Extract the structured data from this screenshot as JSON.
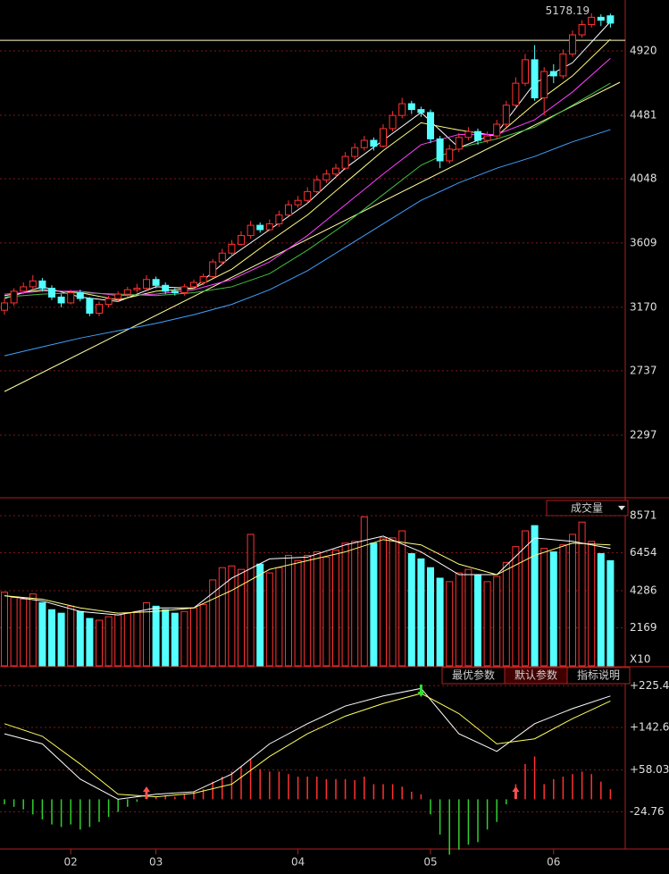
{
  "chart_data": [
    {
      "type": "candlestick",
      "peak_label": 5178.19,
      "peak_index": 62,
      "ref_line": 4993,
      "ylim": [
        1882,
        5268
      ],
      "yticks": [
        4920,
        4481,
        4048,
        3609,
        3170,
        2737,
        2297
      ],
      "x_labels": [
        {
          "index": 7,
          "label": "02"
        },
        {
          "index": 16,
          "label": "03"
        },
        {
          "index": 31,
          "label": "04"
        },
        {
          "index": 45,
          "label": "05"
        },
        {
          "index": 58,
          "label": "06"
        }
      ],
      "up_color": "#ff3232",
      "down_color": "#54ffff",
      "candles": [
        [
          3150,
          3230,
          3120,
          3200
        ],
        [
          3200,
          3300,
          3180,
          3280
        ],
        [
          3280,
          3340,
          3260,
          3310
        ],
        [
          3310,
          3390,
          3290,
          3350
        ],
        [
          3350,
          3370,
          3280,
          3300
        ],
        [
          3300,
          3320,
          3220,
          3240
        ],
        [
          3240,
          3260,
          3170,
          3200
        ],
        [
          3200,
          3290,
          3190,
          3270
        ],
        [
          3270,
          3290,
          3210,
          3230
        ],
        [
          3230,
          3240,
          3110,
          3130
        ],
        [
          3130,
          3210,
          3110,
          3190
        ],
        [
          3190,
          3250,
          3170,
          3230
        ],
        [
          3230,
          3280,
          3210,
          3260
        ],
        [
          3260,
          3310,
          3240,
          3290
        ],
        [
          3290,
          3330,
          3270,
          3300
        ],
        [
          3300,
          3390,
          3290,
          3360
        ],
        [
          3360,
          3380,
          3300,
          3320
        ],
        [
          3320,
          3340,
          3260,
          3280
        ],
        [
          3280,
          3300,
          3250,
          3270
        ],
        [
          3270,
          3330,
          3250,
          3310
        ],
        [
          3310,
          3360,
          3290,
          3340
        ],
        [
          3340,
          3400,
          3320,
          3380
        ],
        [
          3380,
          3500,
          3370,
          3480
        ],
        [
          3480,
          3570,
          3460,
          3540
        ],
        [
          3540,
          3630,
          3520,
          3600
        ],
        [
          3600,
          3690,
          3590,
          3660
        ],
        [
          3660,
          3760,
          3640,
          3730
        ],
        [
          3730,
          3750,
          3680,
          3700
        ],
        [
          3700,
          3770,
          3690,
          3740
        ],
        [
          3740,
          3830,
          3720,
          3800
        ],
        [
          3800,
          3900,
          3790,
          3870
        ],
        [
          3870,
          3930,
          3850,
          3900
        ],
        [
          3900,
          3990,
          3880,
          3960
        ],
        [
          3960,
          4070,
          3950,
          4040
        ],
        [
          4040,
          4110,
          4020,
          4080
        ],
        [
          4080,
          4150,
          4060,
          4120
        ],
        [
          4120,
          4230,
          4110,
          4200
        ],
        [
          4200,
          4290,
          4180,
          4260
        ],
        [
          4260,
          4340,
          4240,
          4310
        ],
        [
          4310,
          4330,
          4240,
          4270
        ],
        [
          4270,
          4420,
          4260,
          4390
        ],
        [
          4390,
          4510,
          4370,
          4480
        ],
        [
          4480,
          4600,
          4460,
          4560
        ],
        [
          4560,
          4580,
          4490,
          4520
        ],
        [
          4520,
          4540,
          4470,
          4500
        ],
        [
          4500,
          4520,
          4290,
          4320
        ],
        [
          4320,
          4340,
          4120,
          4170
        ],
        [
          4170,
          4280,
          4150,
          4250
        ],
        [
          4250,
          4360,
          4230,
          4330
        ],
        [
          4330,
          4400,
          4310,
          4370
        ],
        [
          4370,
          4390,
          4280,
          4310
        ],
        [
          4310,
          4370,
          4290,
          4340
        ],
        [
          4340,
          4450,
          4320,
          4420
        ],
        [
          4420,
          4580,
          4400,
          4550
        ],
        [
          4550,
          4740,
          4530,
          4700
        ],
        [
          4700,
          4900,
          4680,
          4860
        ],
        [
          4860,
          4960,
          4580,
          4600
        ],
        [
          4600,
          4810,
          4480,
          4780
        ],
        [
          4780,
          4830,
          4700,
          4750
        ],
        [
          4750,
          4930,
          4730,
          4900
        ],
        [
          4900,
          5060,
          4880,
          5030
        ],
        [
          5030,
          5130,
          5010,
          5100
        ],
        [
          5100,
          5178.19,
          5080,
          5150
        ],
        [
          5150,
          5170,
          5090,
          5130
        ],
        [
          5160,
          5175,
          5080,
          5110
        ]
      ],
      "ma_x": [
        0,
        4,
        8,
        12,
        16,
        20,
        24,
        28,
        32,
        36,
        40,
        44,
        48,
        52,
        56,
        60,
        64
      ],
      "series": [
        {
          "color": "#ffffff",
          "values": [
            3230,
            3310,
            3240,
            3210,
            3310,
            3300,
            3520,
            3700,
            3880,
            4120,
            4310,
            4500,
            4260,
            4360,
            4700,
            4840,
            5120
          ]
        },
        {
          "color": "#ffff80",
          "values": [
            3250,
            3290,
            3270,
            3220,
            3280,
            3300,
            3430,
            3620,
            3800,
            4020,
            4240,
            4430,
            4380,
            4340,
            4560,
            4750,
            5000
          ]
        },
        {
          "color": "#ff40ff",
          "values": [
            3260,
            3280,
            3280,
            3250,
            3260,
            3290,
            3360,
            3480,
            3660,
            3870,
            4080,
            4280,
            4350,
            4350,
            4450,
            4640,
            4870
          ]
        },
        {
          "color": "#40c040",
          "values": [
            3240,
            3260,
            3270,
            3260,
            3250,
            3270,
            3310,
            3400,
            3560,
            3740,
            3940,
            4140,
            4260,
            4320,
            4400,
            4550,
            4700
          ]
        },
        {
          "color": "#40a0ff",
          "values": [
            2839,
            2900,
            2960,
            3010,
            3060,
            3120,
            3190,
            3290,
            3420,
            3580,
            3740,
            3900,
            4020,
            4120,
            4200,
            4300,
            4383
          ]
        }
      ],
      "trend_x": [
        0,
        65
      ],
      "trend": [
        2595,
        4706
      ],
      "trend_color": "#ffffa0"
    },
    {
      "type": "volume",
      "legend": "成交量",
      "unit": "X10",
      "ylim": [
        0,
        9435
      ],
      "yticks": [
        8571,
        6454,
        4286,
        2169
      ],
      "values": [
        4200,
        3900,
        3800,
        4100,
        3600,
        3200,
        3000,
        3400,
        3100,
        2700,
        2600,
        2800,
        2900,
        3000,
        3100,
        3600,
        3400,
        3200,
        3000,
        3100,
        3300,
        3500,
        4900,
        5600,
        5700,
        5500,
        7500,
        5800,
        5300,
        5600,
        6300,
        6000,
        6300,
        6500,
        6200,
        6600,
        7000,
        7100,
        8500,
        7000,
        7300,
        7300,
        7700,
        6400,
        6100,
        5600,
        5000,
        4800,
        5300,
        5500,
        5200,
        4800,
        5100,
        5900,
        6800,
        7700,
        8000,
        6700,
        6500,
        6900,
        7500,
        8200,
        7100,
        6400,
        6000
      ],
      "ma_x": [
        0,
        4,
        8,
        12,
        16,
        20,
        24,
        28,
        32,
        36,
        40,
        44,
        48,
        52,
        56,
        60,
        64
      ],
      "series": [
        {
          "color": "#ffffff",
          "values": [
            4000,
            3700,
            3100,
            2900,
            3300,
            3300,
            5000,
            6100,
            6200,
            6900,
            7400,
            6500,
            5200,
            5200,
            7300,
            7100,
            6700
          ]
        },
        {
          "color": "#ffff80",
          "values": [
            4000,
            3800,
            3300,
            3000,
            3100,
            3300,
            4300,
            5500,
            6000,
            6500,
            7200,
            6900,
            5800,
            5200,
            6300,
            7000,
            6900
          ]
        }
      ]
    },
    {
      "type": "macd",
      "buttons": [
        "最优参数",
        "默认参数",
        "指标说明"
      ],
      "ylim": [
        -98.6,
        259.6
      ],
      "yticks": [
        {
          "value": 225.4,
          "label": "+225.4"
        },
        {
          "value": 142.6,
          "label": "+142.6"
        },
        {
          "value": 58.03,
          "label": "+58.03"
        },
        -24.76
      ],
      "histogram": [
        -10,
        -15,
        -20,
        -30,
        -40,
        -50,
        -55,
        -50,
        -60,
        -55,
        -45,
        -35,
        -25,
        -15,
        -5,
        5,
        5,
        8,
        5,
        10,
        15,
        20,
        35,
        45,
        55,
        65,
        80,
        60,
        55,
        55,
        50,
        45,
        45,
        45,
        40,
        40,
        40,
        38,
        45,
        30,
        30,
        30,
        25,
        15,
        10,
        -30,
        -70,
        -110,
        -100,
        -90,
        -85,
        -60,
        -45,
        -10,
        30,
        70,
        85,
        30,
        40,
        45,
        50,
        55,
        50,
        35,
        20
      ],
      "line_x": [
        0,
        4,
        8,
        12,
        16,
        20,
        24,
        28,
        32,
        36,
        40,
        44,
        48,
        52,
        56,
        60,
        64
      ],
      "series": [
        {
          "color": "#ffffff",
          "values": [
            130,
            110,
            40,
            0,
            10,
            15,
            50,
            110,
            150,
            185,
            205,
            220,
            130,
            95,
            150,
            180,
            205
          ]
        },
        {
          "color": "#ffff60",
          "values": [
            150,
            125,
            70,
            10,
            5,
            12,
            30,
            85,
            130,
            165,
            190,
            210,
            170,
            110,
            120,
            160,
            195
          ]
        }
      ],
      "signals": [
        {
          "index": 15,
          "kind": "buy"
        },
        {
          "index": 44,
          "kind": "sell"
        },
        {
          "index": 54,
          "kind": "buy"
        }
      ]
    }
  ]
}
